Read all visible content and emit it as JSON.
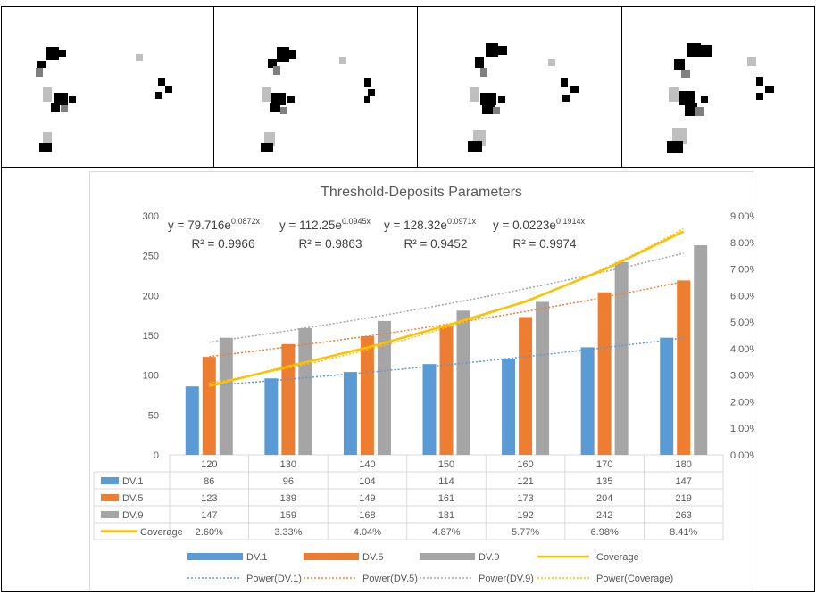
{
  "thumbnails": [
    {
      "cells": [
        [
          70,
          18
        ],
        [
          72,
          18
        ],
        [
          78,
          12
        ],
        [
          88,
          18
        ],
        [
          90,
          18
        ],
        [
          98,
          12
        ],
        [
          52,
          18
        ],
        [
          56,
          18
        ],
        [
          62,
          12
        ],
        [
          74,
          10
        ],
        [
          38,
          10
        ],
        [
          42,
          10
        ],
        [
          48,
          10
        ],
        [
          60,
          10
        ],
        [
          64,
          14
        ]
      ]
    },
    {
      "cells": [
        [
          68,
          20
        ],
        [
          74,
          18
        ],
        [
          78,
          12
        ],
        [
          84,
          18
        ],
        [
          90,
          18
        ],
        [
          98,
          12
        ],
        [
          52,
          16
        ],
        [
          58,
          18
        ],
        [
          62,
          12
        ],
        [
          72,
          10
        ],
        [
          40,
          10
        ],
        [
          44,
          12
        ],
        [
          50,
          10
        ],
        [
          62,
          12
        ],
        [
          66,
          14
        ]
      ]
    },
    {
      "cells": [
        [
          66,
          20
        ],
        [
          74,
          20
        ],
        [
          80,
          14
        ],
        [
          86,
          18
        ],
        [
          92,
          16
        ],
        [
          100,
          12
        ],
        [
          50,
          16
        ],
        [
          56,
          18
        ],
        [
          64,
          14
        ],
        [
          72,
          12
        ],
        [
          38,
          12
        ],
        [
          44,
          12
        ],
        [
          52,
          10
        ],
        [
          60,
          14
        ],
        [
          68,
          14
        ]
      ]
    },
    {
      "cells": [
        [
          64,
          22
        ],
        [
          72,
          20
        ],
        [
          80,
          14
        ],
        [
          88,
          18
        ],
        [
          94,
          16
        ],
        [
          100,
          14
        ],
        [
          48,
          18
        ],
        [
          56,
          20
        ],
        [
          64,
          14
        ],
        [
          72,
          14
        ],
        [
          36,
          12
        ],
        [
          44,
          14
        ],
        [
          52,
          12
        ],
        [
          62,
          14
        ],
        [
          70,
          14
        ]
      ]
    }
  ],
  "chart_data": {
    "type": "bar",
    "title": "Threshold-Deposits Parameters",
    "categories": [
      "120",
      "130",
      "140",
      "150",
      "160",
      "170",
      "180"
    ],
    "left_axis": {
      "min": 0,
      "max": 300,
      "step": 50,
      "ticks": [
        "0",
        "50",
        "100",
        "150",
        "200",
        "250",
        "300"
      ]
    },
    "right_axis": {
      "min": 0,
      "max": 0.09,
      "step": 0.01,
      "ticks": [
        "0.00%",
        "1.00%",
        "2.00%",
        "3.00%",
        "4.00%",
        "5.00%",
        "6.00%",
        "7.00%",
        "8.00%",
        "9.00%"
      ]
    },
    "series": [
      {
        "name": "DV.1",
        "color": "#5b9bd5",
        "values": [
          86,
          96,
          104,
          114,
          121,
          135,
          147
        ],
        "labels": [
          "86",
          "96",
          "104",
          "114",
          "121",
          "135",
          "147"
        ]
      },
      {
        "name": "DV.5",
        "color": "#ed7d31",
        "values": [
          123,
          139,
          149,
          161,
          173,
          204,
          219
        ],
        "labels": [
          "123",
          "139",
          "149",
          "161",
          "173",
          "204",
          "219"
        ]
      },
      {
        "name": "DV.9",
        "color": "#a5a5a5",
        "values": [
          147,
          159,
          168,
          181,
          192,
          242,
          263
        ],
        "labels": [
          "147",
          "159",
          "168",
          "181",
          "192",
          "242",
          "263"
        ]
      }
    ],
    "line_series": {
      "name": "Coverage",
      "color": "#ffc000",
      "values": [
        0.026,
        0.0333,
        0.0404,
        0.0487,
        0.0577,
        0.0698,
        0.0841
      ],
      "labels": [
        "2.60%",
        "3.33%",
        "4.04%",
        "4.87%",
        "5.77%",
        "6.98%",
        "8.41%"
      ]
    },
    "trendlines": [
      {
        "name": "Power(DV.1)",
        "color": "#5b9bd5",
        "a": 79.716,
        "b": 0.0872,
        "axis": "left"
      },
      {
        "name": "Power(DV.5)",
        "color": "#ed7d31",
        "a": 112.25,
        "b": 0.0945,
        "axis": "left"
      },
      {
        "name": "Power(DV.9)",
        "color": "#a5a5a5",
        "a": 128.32,
        "b": 0.0971,
        "axis": "left"
      },
      {
        "name": "Power(Coverage)",
        "color": "#ffc000",
        "a": 0.0223,
        "b": 0.1914,
        "axis": "right"
      }
    ],
    "equations": [
      {
        "base": "y = 79.716e",
        "exp": "0.0872x",
        "r2": "R² = 0.9966"
      },
      {
        "base": "y = 112.25e",
        "exp": "0.0945x",
        "r2": "R² = 0.9863"
      },
      {
        "base": "y = 128.32e",
        "exp": "0.0971x",
        "r2": "R² = 0.9452"
      },
      {
        "base": "y = 0.0223e",
        "exp": "0.1914x",
        "r2": "R² = 0.9974"
      }
    ],
    "grid": false,
    "legend_position": "bottom",
    "table": true
  }
}
